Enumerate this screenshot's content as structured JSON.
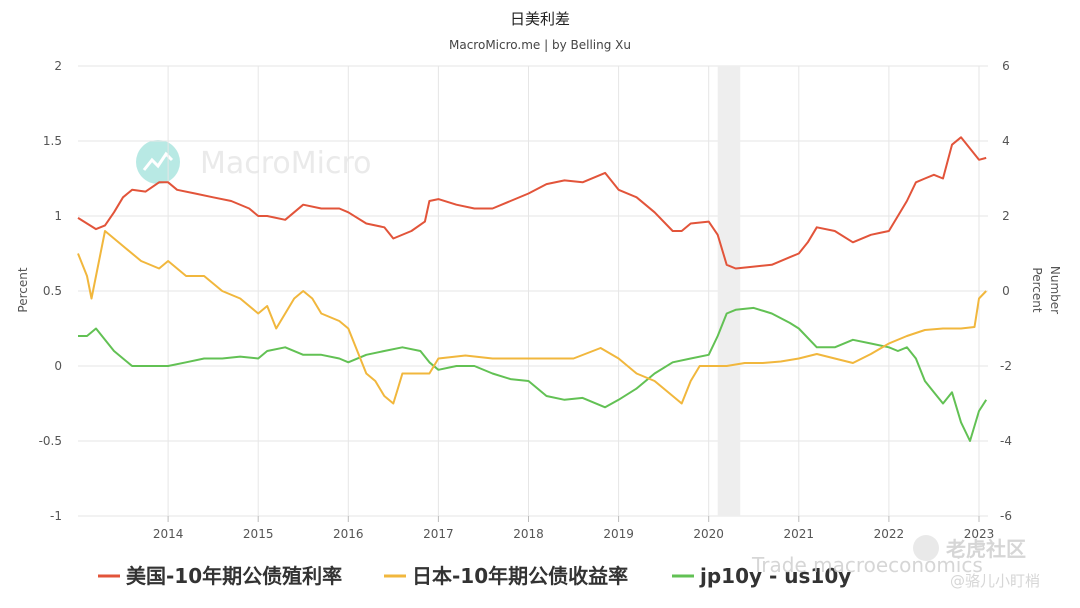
{
  "chart_data": {
    "type": "line",
    "title": "日美利差",
    "subtitle": "MacroMicro.me | by Belling Xu",
    "ylabel_left": "Percent",
    "ylabel_right_outer": "Number",
    "ylabel_right_inner": "Percent",
    "y_left": {
      "min": -1,
      "max": 2,
      "ticks": [
        "2",
        "1.5",
        "1",
        "0.5",
        "0",
        "-0.5",
        "-1"
      ]
    },
    "y_right": {
      "min": -6,
      "max": 6,
      "ticks": [
        "6",
        "4",
        "2",
        "0",
        "-2",
        "-4",
        "-6"
      ]
    },
    "x_range": [
      2013.0,
      2023.1
    ],
    "x_ticks": [
      "2014",
      "2015",
      "2016",
      "2017",
      "2018",
      "2019",
      "2020",
      "2021",
      "2022",
      "2023"
    ],
    "recession_band": [
      2020.1,
      2020.35
    ],
    "grid": true,
    "legend_position": "bottom",
    "series": [
      {
        "name": "美国-10年期公债殖利率",
        "color": "#e2543a",
        "axis": "right",
        "x": [
          2013.0,
          2013.1,
          2013.2,
          2013.3,
          2013.4,
          2013.5,
          2013.6,
          2013.75,
          2013.9,
          2014.0,
          2014.1,
          2014.3,
          2014.5,
          2014.7,
          2014.9,
          2015.0,
          2015.1,
          2015.3,
          2015.5,
          2015.7,
          2015.9,
          2016.0,
          2016.2,
          2016.4,
          2016.5,
          2016.7,
          2016.85,
          2016.9,
          2017.0,
          2017.2,
          2017.4,
          2017.6,
          2017.8,
          2018.0,
          2018.2,
          2018.4,
          2018.6,
          2018.85,
          2019.0,
          2019.2,
          2019.4,
          2019.6,
          2019.7,
          2019.8,
          2020.0,
          2020.1,
          2020.2,
          2020.3,
          2020.5,
          2020.7,
          2020.9,
          2021.0,
          2021.1,
          2021.2,
          2021.4,
          2021.6,
          2021.8,
          2021.9,
          2022.0,
          2022.1,
          2022.2,
          2022.3,
          2022.4,
          2022.5,
          2022.6,
          2022.7,
          2022.8,
          2022.9,
          2023.0,
          2023.08
        ],
        "y": [
          1.95,
          1.8,
          1.65,
          1.75,
          2.1,
          2.5,
          2.7,
          2.65,
          2.9,
          2.9,
          2.7,
          2.6,
          2.5,
          2.4,
          2.2,
          2.0,
          2.0,
          1.9,
          2.3,
          2.2,
          2.2,
          2.1,
          1.8,
          1.7,
          1.4,
          1.6,
          1.85,
          2.4,
          2.45,
          2.3,
          2.2,
          2.2,
          2.4,
          2.6,
          2.85,
          2.95,
          2.9,
          3.15,
          2.7,
          2.5,
          2.1,
          1.6,
          1.6,
          1.8,
          1.85,
          1.5,
          0.7,
          0.6,
          0.65,
          0.7,
          0.9,
          1.0,
          1.3,
          1.7,
          1.6,
          1.3,
          1.5,
          1.55,
          1.6,
          2.0,
          2.4,
          2.9,
          3.0,
          3.1,
          3.0,
          3.9,
          4.1,
          3.8,
          3.5,
          3.55
        ]
      },
      {
        "name": "日本-10年期公债收益率",
        "color": "#f1b73d",
        "axis": "left",
        "x": [
          2013.0,
          2013.1,
          2013.15,
          2013.2,
          2013.3,
          2013.4,
          2013.5,
          2013.7,
          2013.9,
          2014.0,
          2014.2,
          2014.4,
          2014.6,
          2014.8,
          2015.0,
          2015.1,
          2015.2,
          2015.3,
          2015.4,
          2015.5,
          2015.6,
          2015.7,
          2015.9,
          2016.0,
          2016.1,
          2016.2,
          2016.3,
          2016.4,
          2016.5,
          2016.55,
          2016.6,
          2016.7,
          2016.9,
          2017.0,
          2017.3,
          2017.6,
          2017.9,
          2018.2,
          2018.5,
          2018.8,
          2019.0,
          2019.2,
          2019.4,
          2019.6,
          2019.7,
          2019.8,
          2019.9,
          2020.0,
          2020.2,
          2020.4,
          2020.6,
          2020.8,
          2021.0,
          2021.2,
          2021.4,
          2021.6,
          2021.8,
          2022.0,
          2022.2,
          2022.4,
          2022.6,
          2022.8,
          2022.95,
          2023.0,
          2023.08
        ],
        "y": [
          0.75,
          0.6,
          0.45,
          0.6,
          0.9,
          0.85,
          0.8,
          0.7,
          0.65,
          0.7,
          0.6,
          0.6,
          0.5,
          0.45,
          0.35,
          0.4,
          0.25,
          0.35,
          0.45,
          0.5,
          0.45,
          0.35,
          0.3,
          0.25,
          0.1,
          -0.05,
          -0.1,
          -0.2,
          -0.25,
          -0.15,
          -0.05,
          -0.05,
          -0.05,
          0.05,
          0.07,
          0.05,
          0.05,
          0.05,
          0.05,
          0.12,
          0.05,
          -0.05,
          -0.1,
          -0.2,
          -0.25,
          -0.1,
          0.0,
          0.0,
          0.0,
          0.02,
          0.02,
          0.03,
          0.05,
          0.08,
          0.05,
          0.02,
          0.08,
          0.15,
          0.2,
          0.24,
          0.25,
          0.25,
          0.26,
          0.45,
          0.5
        ]
      },
      {
        "name": "jp10y - us10y",
        "color": "#62c154",
        "axis": "right",
        "x": [
          2013.0,
          2013.1,
          2013.2,
          2013.3,
          2013.4,
          2013.5,
          2013.6,
          2013.75,
          2013.9,
          2014.0,
          2014.2,
          2014.4,
          2014.6,
          2014.8,
          2015.0,
          2015.1,
          2015.3,
          2015.5,
          2015.7,
          2015.9,
          2016.0,
          2016.2,
          2016.4,
          2016.6,
          2016.8,
          2016.9,
          2017.0,
          2017.2,
          2017.4,
          2017.6,
          2017.8,
          2018.0,
          2018.2,
          2018.4,
          2018.6,
          2018.85,
          2019.0,
          2019.2,
          2019.4,
          2019.6,
          2019.8,
          2020.0,
          2020.1,
          2020.2,
          2020.3,
          2020.5,
          2020.7,
          2020.9,
          2021.0,
          2021.2,
          2021.4,
          2021.6,
          2021.8,
          2022.0,
          2022.1,
          2022.2,
          2022.3,
          2022.4,
          2022.5,
          2022.6,
          2022.7,
          2022.8,
          2022.9,
          2023.0,
          2023.08
        ],
        "y": [
          -1.2,
          -1.2,
          -1.0,
          -1.3,
          -1.6,
          -1.8,
          -2.0,
          -2.0,
          -2.0,
          -2.0,
          -1.9,
          -1.8,
          -1.8,
          -1.75,
          -1.8,
          -1.6,
          -1.5,
          -1.7,
          -1.7,
          -1.8,
          -1.9,
          -1.7,
          -1.6,
          -1.5,
          -1.6,
          -1.9,
          -2.1,
          -2.0,
          -2.0,
          -2.2,
          -2.35,
          -2.4,
          -2.8,
          -2.9,
          -2.85,
          -3.1,
          -2.9,
          -2.6,
          -2.2,
          -1.9,
          -1.8,
          -1.7,
          -1.2,
          -0.6,
          -0.5,
          -0.45,
          -0.6,
          -0.85,
          -1.0,
          -1.5,
          -1.5,
          -1.3,
          -1.4,
          -1.5,
          -1.6,
          -1.5,
          -1.8,
          -2.4,
          -2.7,
          -3.0,
          -2.7,
          -3.5,
          -4.0,
          -3.2,
          -2.9
        ]
      }
    ]
  },
  "watermark": {
    "text": "MacroMicro",
    "color": "#d9d9d9"
  },
  "footer_watermark": {
    "text": "Trade macroeconomics",
    "logo_text": "老虎社区",
    "author_text": "@骆儿小盯梢",
    "logo_icon": "tiger-logo-icon"
  }
}
